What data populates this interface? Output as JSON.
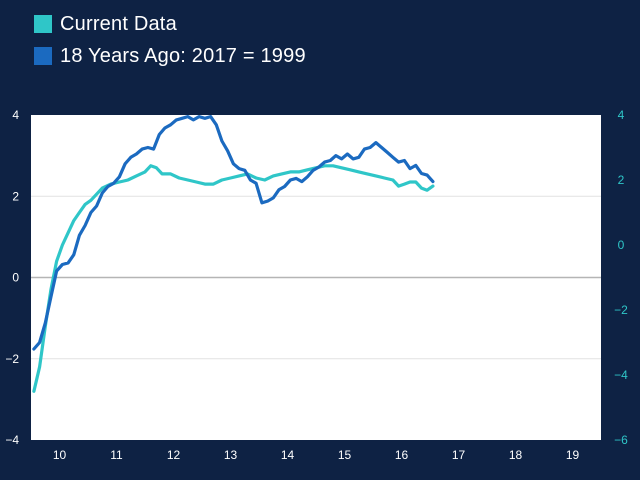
{
  "legend": {
    "items": [
      {
        "label": "Current Data",
        "color": "#2fc6c8"
      },
      {
        "label": "18 Years Ago: 2017 = 1999",
        "color": "#1b6ac0"
      }
    ]
  },
  "chart_data": {
    "type": "line",
    "title": "",
    "xlabel": "",
    "ylabel": "",
    "xlim": [
      9.5,
      19.5
    ],
    "ylim_left": [
      -4,
      4
    ],
    "ylim_right": [
      -6,
      4
    ],
    "x_ticks": [
      "10",
      "11",
      "12",
      "13",
      "14",
      "15",
      "16",
      "17",
      "18",
      "19"
    ],
    "y_ticks_left": [
      "4",
      "2",
      "0",
      "−2",
      "−4"
    ],
    "y_ticks_right": [
      "4",
      "2",
      "0",
      "−2",
      "−4",
      "−6"
    ],
    "gridlines": true,
    "series": [
      {
        "name": "Current Data",
        "axis": "left",
        "color": "#2fc6c8",
        "points": [
          [
            9.55,
            -2.8
          ],
          [
            9.65,
            -2.2
          ],
          [
            9.75,
            -1.2
          ],
          [
            9.85,
            -0.3
          ],
          [
            9.95,
            0.4
          ],
          [
            10.05,
            0.8
          ],
          [
            10.15,
            1.1
          ],
          [
            10.25,
            1.4
          ],
          [
            10.35,
            1.6
          ],
          [
            10.45,
            1.8
          ],
          [
            10.55,
            1.9
          ],
          [
            10.65,
            2.05
          ],
          [
            10.75,
            2.2
          ],
          [
            10.9,
            2.3
          ],
          [
            11.05,
            2.35
          ],
          [
            11.2,
            2.4
          ],
          [
            11.35,
            2.5
          ],
          [
            11.5,
            2.6
          ],
          [
            11.6,
            2.75
          ],
          [
            11.7,
            2.7
          ],
          [
            11.8,
            2.55
          ],
          [
            11.95,
            2.55
          ],
          [
            12.1,
            2.45
          ],
          [
            12.25,
            2.4
          ],
          [
            12.4,
            2.35
          ],
          [
            12.55,
            2.3
          ],
          [
            12.7,
            2.3
          ],
          [
            12.85,
            2.4
          ],
          [
            13.0,
            2.45
          ],
          [
            13.15,
            2.5
          ],
          [
            13.3,
            2.55
          ],
          [
            13.45,
            2.45
          ],
          [
            13.6,
            2.4
          ],
          [
            13.75,
            2.5
          ],
          [
            13.9,
            2.55
          ],
          [
            14.05,
            2.6
          ],
          [
            14.2,
            2.6
          ],
          [
            14.35,
            2.65
          ],
          [
            14.5,
            2.7
          ],
          [
            14.65,
            2.75
          ],
          [
            14.8,
            2.75
          ],
          [
            14.95,
            2.7
          ],
          [
            15.1,
            2.65
          ],
          [
            15.25,
            2.6
          ],
          [
            15.4,
            2.55
          ],
          [
            15.55,
            2.5
          ],
          [
            15.7,
            2.45
          ],
          [
            15.85,
            2.4
          ],
          [
            15.95,
            2.25
          ],
          [
            16.05,
            2.3
          ],
          [
            16.15,
            2.35
          ],
          [
            16.25,
            2.35
          ],
          [
            16.35,
            2.2
          ],
          [
            16.45,
            2.15
          ],
          [
            16.55,
            2.25
          ]
        ]
      },
      {
        "name": "18 Years Ago: 2017 = 1999",
        "axis": "right",
        "color": "#1b6ac0",
        "points": [
          [
            9.55,
            -3.2
          ],
          [
            9.65,
            -3.0
          ],
          [
            9.75,
            -2.4
          ],
          [
            9.85,
            -1.6
          ],
          [
            9.95,
            -0.8
          ],
          [
            10.05,
            -0.6
          ],
          [
            10.15,
            -0.55
          ],
          [
            10.25,
            -0.3
          ],
          [
            10.35,
            0.3
          ],
          [
            10.45,
            0.6
          ],
          [
            10.55,
            1.0
          ],
          [
            10.65,
            1.2
          ],
          [
            10.75,
            1.6
          ],
          [
            10.85,
            1.8
          ],
          [
            10.95,
            1.9
          ],
          [
            11.05,
            2.1
          ],
          [
            11.15,
            2.5
          ],
          [
            11.25,
            2.7
          ],
          [
            11.35,
            2.8
          ],
          [
            11.45,
            2.95
          ],
          [
            11.55,
            3.0
          ],
          [
            11.65,
            2.95
          ],
          [
            11.75,
            3.4
          ],
          [
            11.85,
            3.6
          ],
          [
            11.95,
            3.7
          ],
          [
            12.05,
            3.85
          ],
          [
            12.15,
            3.9
          ],
          [
            12.25,
            3.95
          ],
          [
            12.35,
            3.85
          ],
          [
            12.45,
            3.95
          ],
          [
            12.55,
            3.9
          ],
          [
            12.65,
            3.95
          ],
          [
            12.75,
            3.7
          ],
          [
            12.85,
            3.2
          ],
          [
            12.95,
            2.9
          ],
          [
            13.05,
            2.5
          ],
          [
            13.15,
            2.35
          ],
          [
            13.25,
            2.3
          ],
          [
            13.35,
            2.0
          ],
          [
            13.45,
            1.9
          ],
          [
            13.55,
            1.3
          ],
          [
            13.65,
            1.35
          ],
          [
            13.75,
            1.45
          ],
          [
            13.85,
            1.7
          ],
          [
            13.95,
            1.8
          ],
          [
            14.05,
            2.0
          ],
          [
            14.15,
            2.05
          ],
          [
            14.25,
            1.95
          ],
          [
            14.35,
            2.1
          ],
          [
            14.45,
            2.3
          ],
          [
            14.55,
            2.4
          ],
          [
            14.65,
            2.55
          ],
          [
            14.75,
            2.6
          ],
          [
            14.85,
            2.75
          ],
          [
            14.95,
            2.65
          ],
          [
            15.05,
            2.8
          ],
          [
            15.15,
            2.65
          ],
          [
            15.25,
            2.7
          ],
          [
            15.35,
            2.95
          ],
          [
            15.45,
            3.0
          ],
          [
            15.55,
            3.15
          ],
          [
            15.65,
            3.0
          ],
          [
            15.75,
            2.85
          ],
          [
            15.85,
            2.7
          ],
          [
            15.95,
            2.55
          ],
          [
            16.05,
            2.6
          ],
          [
            16.15,
            2.35
          ],
          [
            16.25,
            2.45
          ],
          [
            16.35,
            2.2
          ],
          [
            16.45,
            2.15
          ],
          [
            16.55,
            1.95
          ]
        ]
      }
    ]
  }
}
